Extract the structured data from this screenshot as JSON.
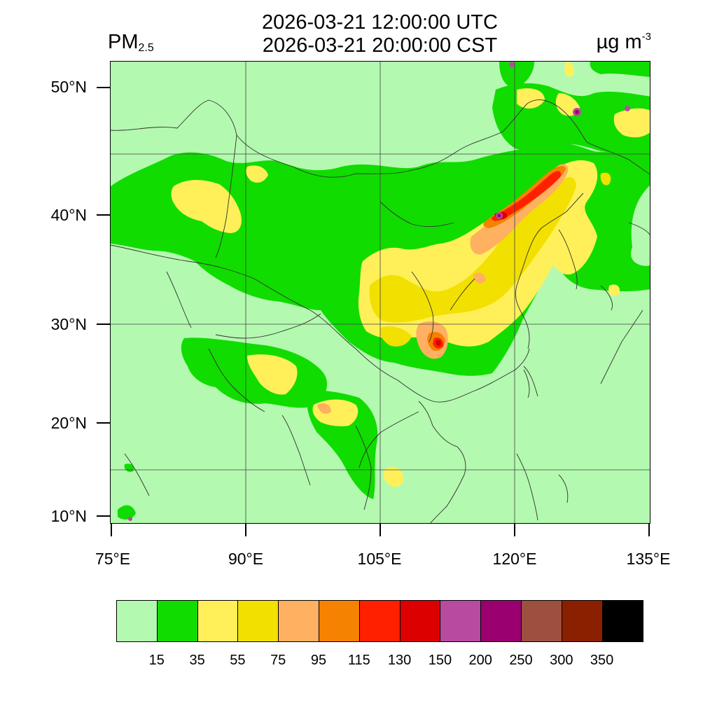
{
  "header": {
    "title_utc": "2026-03-21 12:00:00 UTC",
    "title_cst": "2026-03-21 20:00:00 CST",
    "variable": "PM",
    "variable_sub": "2.5",
    "units_base": "µg m",
    "units_exp": "-3"
  },
  "axes": {
    "lat_labels": [
      "50°N",
      "40°N",
      "30°N",
      "20°N",
      "10°N"
    ],
    "lon_labels": [
      "75°E",
      "90°E",
      "105°E",
      "120°E",
      "135°E"
    ]
  },
  "legend": {
    "colors": [
      "#b4f9b0",
      "#10dc00",
      "#fff05a",
      "#f2e000",
      "#ffb060",
      "#f58200",
      "#ff2000",
      "#dc0000",
      "#b84aa0",
      "#9a0070",
      "#9e5040",
      "#8a2000",
      "#000000"
    ],
    "labels": [
      "15",
      "35",
      "55",
      "75",
      "95",
      "115",
      "130",
      "150",
      "200",
      "250",
      "300",
      "350"
    ]
  },
  "map_colors": {
    "background": "#b4f9b0",
    "green": "#10dc00",
    "yellow_light": "#fff05a",
    "yellow": "#f2e000",
    "orange_light": "#ffb060",
    "orange": "#f58200",
    "red": "#ff2000",
    "red_dark": "#dc0000",
    "magenta": "#b84aa0",
    "purple": "#9a0070",
    "boundary": "#303030"
  }
}
